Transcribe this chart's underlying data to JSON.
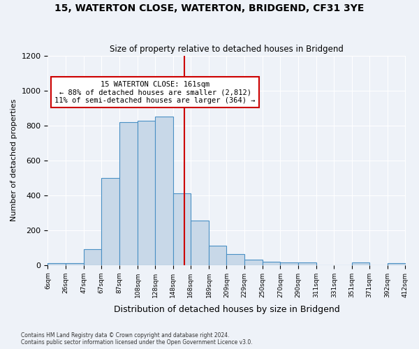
{
  "title_line1": "15, WATERTON CLOSE, WATERTON, BRIDGEND, CF31 3YE",
  "title_line2": "Size of property relative to detached houses in Bridgend",
  "xlabel": "Distribution of detached houses by size in Bridgend",
  "ylabel": "Number of detached properties",
  "footer_line1": "Contains HM Land Registry data © Crown copyright and database right 2024.",
  "footer_line2": "Contains public sector information licensed under the Open Government Licence v3.0.",
  "annotation_line1": "15 WATERTON CLOSE: 161sqm",
  "annotation_line2": "← 88% of detached houses are smaller (2,812)",
  "annotation_line3": "11% of semi-detached houses are larger (364) →",
  "property_size": 161,
  "bar_edges": [
    6,
    26,
    47,
    67,
    87,
    108,
    128,
    148,
    168,
    189,
    209,
    229,
    250,
    270,
    290,
    311,
    331,
    351,
    371,
    392,
    412
  ],
  "bar_heights": [
    10,
    10,
    90,
    500,
    820,
    825,
    850,
    410,
    255,
    110,
    65,
    30,
    20,
    15,
    15,
    0,
    0,
    15,
    0,
    10
  ],
  "bar_color": "#c8d8e8",
  "bar_edge_color": "#4a90c4",
  "vline_color": "#cc0000",
  "vline_x": 161,
  "box_color": "#cc0000",
  "ylim": [
    0,
    1200
  ],
  "yticks": [
    0,
    200,
    400,
    600,
    800,
    1000,
    1200
  ],
  "background_color": "#eef2f8",
  "plot_bg_color": "#eef2f8",
  "grid_color": "#ffffff"
}
